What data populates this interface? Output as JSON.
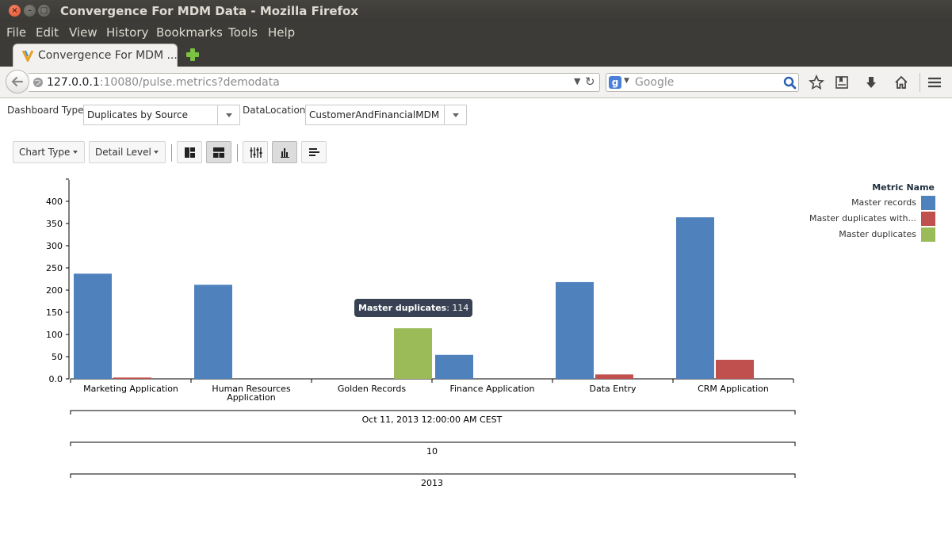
{
  "window": {
    "title": "Convergence For MDM Data - Mozilla Firefox"
  },
  "menu": {
    "items": [
      "File",
      "Edit",
      "View",
      "History",
      "Bookmarks",
      "Tools",
      "Help"
    ]
  },
  "tab": {
    "title": "Convergence For MDM ..."
  },
  "nav": {
    "url_host": "127.0.0.1",
    "url_rest": ":10080/pulse.metrics?demodata",
    "search_placeholder": "Google"
  },
  "filters": {
    "dashboard_type_label": "Dashboard Type:",
    "dashboard_type_value": "Duplicates by Source",
    "data_location_label": "DataLocation:",
    "data_location_value": "CustomerAndFinancialMDM"
  },
  "toolbar": {
    "chart_type_label": "Chart Type",
    "detail_level_label": "Detail Level"
  },
  "tooltip": {
    "label": "Master duplicates",
    "value": ": 114"
  },
  "colors": {
    "master_records": "#4f81bd",
    "master_duplicates_with": "#c0504d",
    "master_duplicates": "#9bbb59"
  },
  "chart_data": {
    "type": "bar",
    "categories": [
      "Marketing Application",
      "Human Resources Application",
      "Golden Records",
      "Finance Application",
      "Data Entry",
      "CRM Application"
    ],
    "series": [
      {
        "name": "Master records",
        "values": [
          237,
          212,
          0,
          54,
          218,
          364
        ]
      },
      {
        "name": "Master duplicates with...",
        "values": [
          3,
          0,
          0,
          0,
          10,
          43
        ]
      },
      {
        "name": "Master duplicates",
        "values": [
          0,
          0,
          114,
          0,
          0,
          0
        ]
      }
    ],
    "yticks": [
      "0.0",
      "50",
      "100",
      "150",
      "200",
      "250",
      "300",
      "350",
      "400"
    ],
    "ylim": [
      0,
      450
    ],
    "legend_title": "Metric Name",
    "legend_position": "top-right",
    "x_groups": [
      "Oct 11, 2013 12:00:00 AM CEST",
      "10",
      "2013"
    ]
  }
}
